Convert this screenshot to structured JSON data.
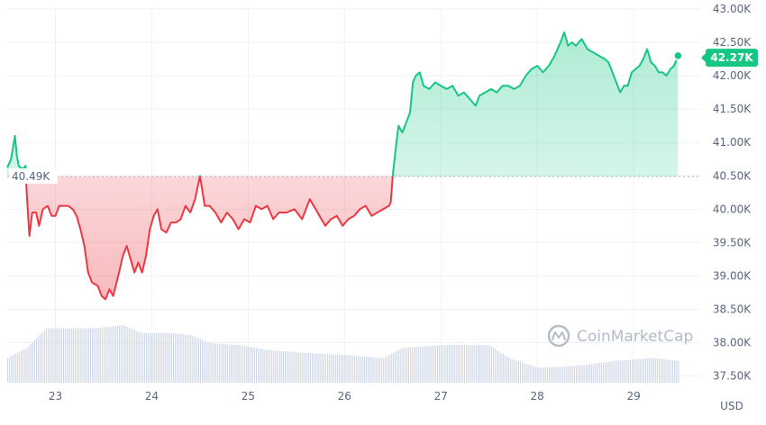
{
  "chart_data": {
    "type": "line",
    "y_unit": "USD",
    "reference_price_label": "40.49K",
    "reference_price": 40490,
    "current_price_label": "42.27K",
    "current_price": 42270,
    "ylim": [
      37400,
      43000
    ],
    "y_ticks": [
      {
        "label": "43.00K",
        "value": 43000
      },
      {
        "label": "42.50K",
        "value": 42500
      },
      {
        "label": "42.00K",
        "value": 42000
      },
      {
        "label": "41.50K",
        "value": 41500
      },
      {
        "label": "41.00K",
        "value": 41000
      },
      {
        "label": "40.50K",
        "value": 40500
      },
      {
        "label": "40.00K",
        "value": 40000
      },
      {
        "label": "39.50K",
        "value": 39500
      },
      {
        "label": "39.00K",
        "value": 39000
      },
      {
        "label": "38.50K",
        "value": 38500
      },
      {
        "label": "38.00K",
        "value": 38000
      },
      {
        "label": "37.50K",
        "value": 37500
      }
    ],
    "x_ticks": [
      {
        "label": "23",
        "day": 23
      },
      {
        "label": "24",
        "day": 24
      },
      {
        "label": "25",
        "day": 25
      },
      {
        "label": "26",
        "day": 26
      },
      {
        "label": "27",
        "day": 27
      },
      {
        "label": "28",
        "day": 28
      },
      {
        "label": "29",
        "day": 29
      }
    ],
    "xlim": [
      22.5,
      29.7
    ],
    "grid": true,
    "colors": {
      "up": "#16c784",
      "down": "#ea3943",
      "volume": "#cfd6e4",
      "grid": "#eff2f5"
    },
    "price_points": [
      [
        22.5,
        40620
      ],
      [
        22.54,
        40750
      ],
      [
        22.58,
        41100
      ],
      [
        22.6,
        40800
      ],
      [
        22.62,
        40650
      ],
      [
        22.66,
        40600
      ],
      [
        22.69,
        40650
      ],
      [
        22.7,
        40300
      ],
      [
        22.73,
        39600
      ],
      [
        22.76,
        39950
      ],
      [
        22.8,
        39950
      ],
      [
        22.83,
        39750
      ],
      [
        22.87,
        40000
      ],
      [
        22.92,
        40050
      ],
      [
        22.96,
        39900
      ],
      [
        23.0,
        39900
      ],
      [
        23.04,
        40050
      ],
      [
        23.08,
        40050
      ],
      [
        23.13,
        40050
      ],
      [
        23.18,
        40000
      ],
      [
        23.22,
        39900
      ],
      [
        23.26,
        39700
      ],
      [
        23.3,
        39450
      ],
      [
        23.34,
        39050
      ],
      [
        23.38,
        38900
      ],
      [
        23.44,
        38850
      ],
      [
        23.48,
        38700
      ],
      [
        23.52,
        38650
      ],
      [
        23.56,
        38800
      ],
      [
        23.6,
        38700
      ],
      [
        23.66,
        39050
      ],
      [
        23.7,
        39300
      ],
      [
        23.74,
        39450
      ],
      [
        23.78,
        39250
      ],
      [
        23.82,
        39050
      ],
      [
        23.86,
        39200
      ],
      [
        23.9,
        39050
      ],
      [
        23.94,
        39300
      ],
      [
        23.98,
        39700
      ],
      [
        24.02,
        39900
      ],
      [
        24.06,
        40000
      ],
      [
        24.1,
        39700
      ],
      [
        24.15,
        39650
      ],
      [
        24.2,
        39800
      ],
      [
        24.25,
        39800
      ],
      [
        24.3,
        39850
      ],
      [
        24.35,
        40050
      ],
      [
        24.4,
        39950
      ],
      [
        24.45,
        40150
      ],
      [
        24.5,
        40500
      ],
      [
        24.55,
        40050
      ],
      [
        24.6,
        40050
      ],
      [
        24.66,
        39950
      ],
      [
        24.72,
        39800
      ],
      [
        24.78,
        39950
      ],
      [
        24.84,
        39850
      ],
      [
        24.9,
        39700
      ],
      [
        24.96,
        39850
      ],
      [
        25.02,
        39800
      ],
      [
        25.08,
        40050
      ],
      [
        25.14,
        40000
      ],
      [
        25.2,
        40050
      ],
      [
        25.26,
        39850
      ],
      [
        25.32,
        39950
      ],
      [
        25.4,
        39950
      ],
      [
        25.48,
        40000
      ],
      [
        25.56,
        39850
      ],
      [
        25.64,
        40150
      ],
      [
        25.72,
        39950
      ],
      [
        25.8,
        39750
      ],
      [
        25.86,
        39850
      ],
      [
        25.92,
        39900
      ],
      [
        25.98,
        39750
      ],
      [
        26.04,
        39850
      ],
      [
        26.1,
        39900
      ],
      [
        26.16,
        40000
      ],
      [
        26.22,
        40050
      ],
      [
        26.28,
        39900
      ],
      [
        26.34,
        39950
      ],
      [
        26.4,
        40000
      ],
      [
        26.46,
        40050
      ],
      [
        26.48,
        40100
      ],
      [
        26.5,
        40500
      ],
      [
        26.53,
        40900
      ],
      [
        26.56,
        41250
      ],
      [
        26.6,
        41150
      ],
      [
        26.64,
        41300
      ],
      [
        26.68,
        41450
      ],
      [
        26.71,
        41900
      ],
      [
        26.74,
        42000
      ],
      [
        26.78,
        42050
      ],
      [
        26.82,
        41850
      ],
      [
        26.88,
        41800
      ],
      [
        26.94,
        41900
      ],
      [
        27.0,
        41850
      ],
      [
        27.06,
        41800
      ],
      [
        27.12,
        41850
      ],
      [
        27.18,
        41700
      ],
      [
        27.24,
        41750
      ],
      [
        27.3,
        41650
      ],
      [
        27.36,
        41550
      ],
      [
        27.4,
        41700
      ],
      [
        27.46,
        41750
      ],
      [
        27.52,
        41800
      ],
      [
        27.58,
        41750
      ],
      [
        27.64,
        41850
      ],
      [
        27.7,
        41850
      ],
      [
        27.76,
        41800
      ],
      [
        27.82,
        41850
      ],
      [
        27.88,
        42000
      ],
      [
        27.94,
        42100
      ],
      [
        28.0,
        42150
      ],
      [
        28.06,
        42050
      ],
      [
        28.12,
        42150
      ],
      [
        28.18,
        42300
      ],
      [
        28.24,
        42500
      ],
      [
        28.28,
        42650
      ],
      [
        28.32,
        42450
      ],
      [
        28.36,
        42500
      ],
      [
        28.4,
        42450
      ],
      [
        28.46,
        42550
      ],
      [
        28.52,
        42400
      ],
      [
        28.58,
        42350
      ],
      [
        28.64,
        42300
      ],
      [
        28.7,
        42250
      ],
      [
        28.74,
        42200
      ],
      [
        28.78,
        42050
      ],
      [
        28.82,
        41900
      ],
      [
        28.86,
        41750
      ],
      [
        28.9,
        41850
      ],
      [
        28.94,
        41850
      ],
      [
        28.98,
        42050
      ],
      [
        29.02,
        42100
      ],
      [
        29.06,
        42150
      ],
      [
        29.1,
        42250
      ],
      [
        29.14,
        42400
      ],
      [
        29.18,
        42200
      ],
      [
        29.22,
        42150
      ],
      [
        29.26,
        42050
      ],
      [
        29.3,
        42050
      ],
      [
        29.34,
        42000
      ],
      [
        29.38,
        42100
      ],
      [
        29.42,
        42150
      ],
      [
        29.46,
        42300
      ]
    ],
    "volume_levels": [
      [
        22.5,
        0.25
      ],
      [
        22.7,
        0.35
      ],
      [
        22.9,
        0.55
      ],
      [
        23.1,
        0.55
      ],
      [
        23.4,
        0.55
      ],
      [
        23.7,
        0.58
      ],
      [
        23.9,
        0.5
      ],
      [
        24.2,
        0.5
      ],
      [
        24.4,
        0.48
      ],
      [
        24.6,
        0.4
      ],
      [
        24.9,
        0.38
      ],
      [
        25.2,
        0.33
      ],
      [
        25.6,
        0.3
      ],
      [
        26.0,
        0.28
      ],
      [
        26.4,
        0.25
      ],
      [
        26.6,
        0.35
      ],
      [
        27.0,
        0.38
      ],
      [
        27.5,
        0.38
      ],
      [
        27.7,
        0.25
      ],
      [
        28.0,
        0.15
      ],
      [
        28.4,
        0.17
      ],
      [
        28.8,
        0.22
      ],
      [
        29.2,
        0.25
      ],
      [
        29.46,
        0.22
      ]
    ],
    "watermark": {
      "brand": "CoinMarketCap",
      "icon": "coinmarketcap-logo-icon"
    }
  }
}
